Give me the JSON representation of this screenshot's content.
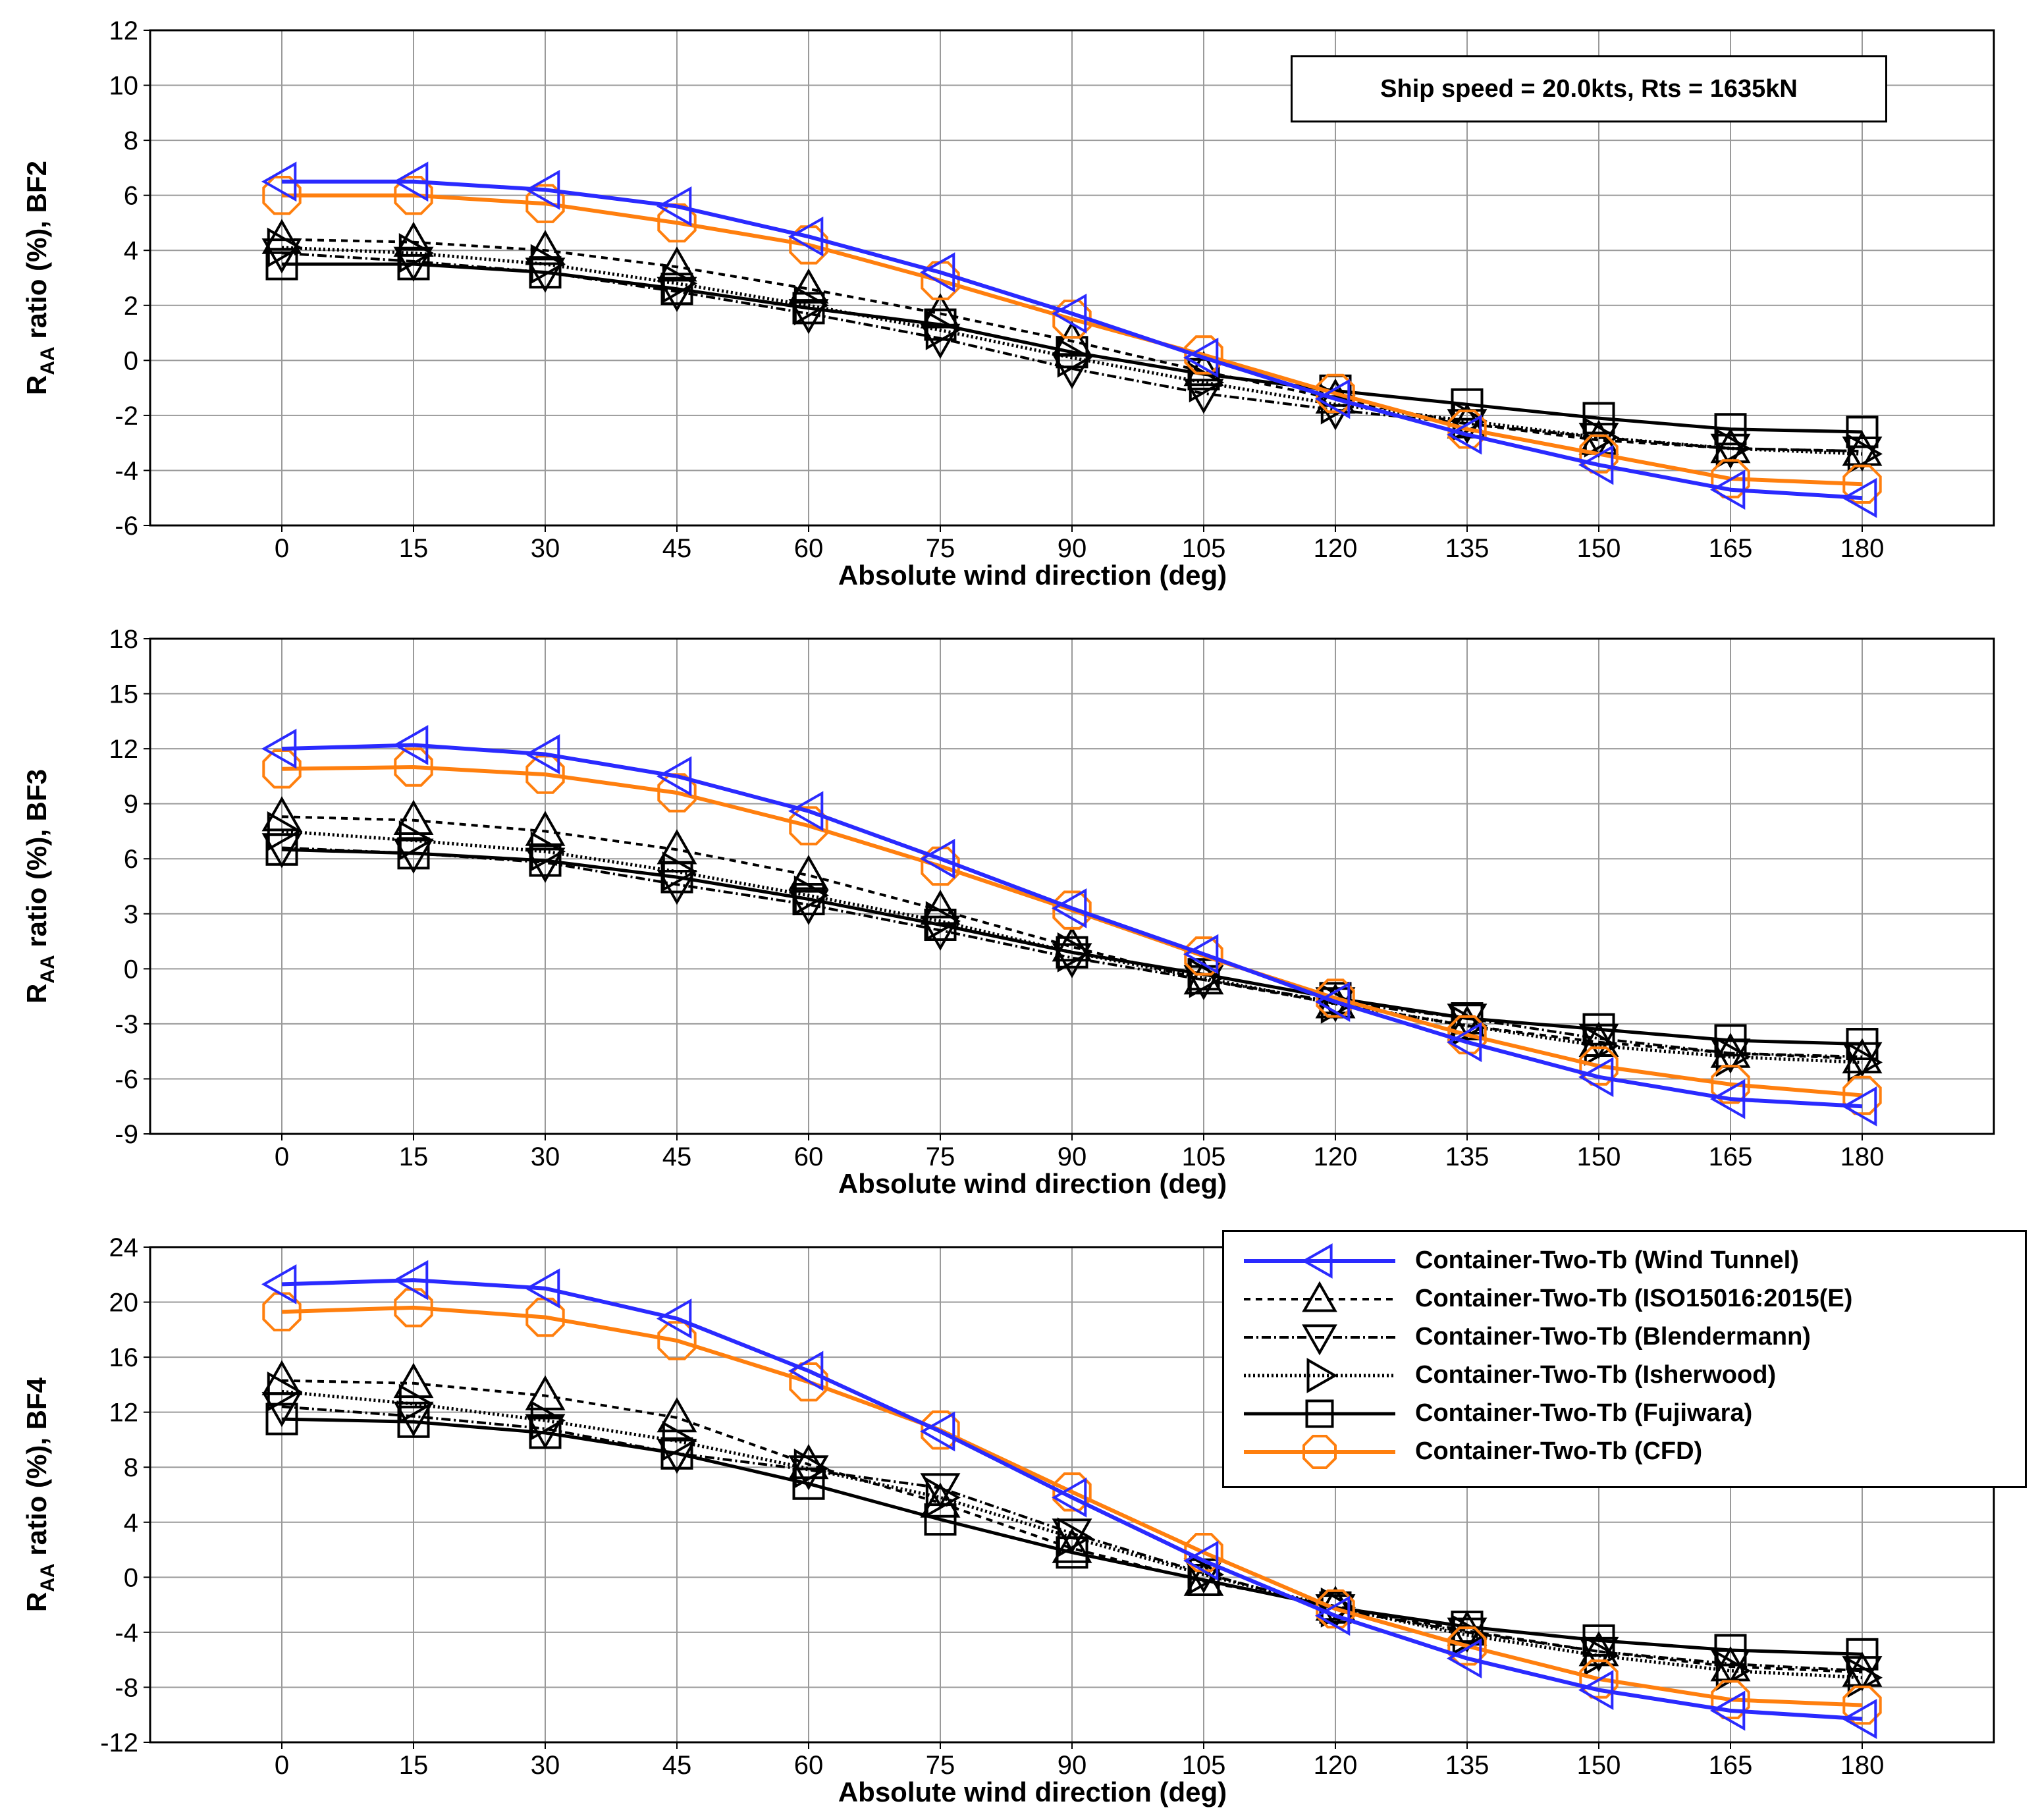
{
  "info_box": "Ship speed = 20.0kts, Rts = 1635kN",
  "legend": [
    {
      "label": "Container-Two-Tb (Wind Tunnel)",
      "series": "wt"
    },
    {
      "label": "Container-Two-Tb (ISO15016:2015(E)",
      "series": "iso"
    },
    {
      "label": "Container-Two-Tb (Blendermann)",
      "series": "blend"
    },
    {
      "label": "Container-Two-Tb (Isherwood)",
      "series": "isher"
    },
    {
      "label": "Container-Two-Tb (Fujiwara)",
      "series": "fuji"
    },
    {
      "label": "Container-Two-Tb (CFD)",
      "series": "cfd"
    }
  ],
  "series_style": {
    "wt": {
      "color": "#2a2aff",
      "dash": "",
      "marker": "tri-left",
      "width": 6
    },
    "iso": {
      "color": "#000000",
      "dash": "10,8",
      "marker": "tri-up",
      "width": 4
    },
    "blend": {
      "color": "#000000",
      "dash": "14,5,3,5",
      "marker": "tri-down",
      "width": 4
    },
    "isher": {
      "color": "#000000",
      "dash": "3,4",
      "marker": "tri-right",
      "width": 5
    },
    "fuji": {
      "color": "#000000",
      "dash": "",
      "marker": "square",
      "width": 5
    },
    "cfd": {
      "color": "#ff7f0e",
      "dash": "",
      "marker": "octagon",
      "width": 6
    }
  },
  "chart_data": [
    {
      "type": "line",
      "xlabel": "Absolute wind direction (deg)",
      "ylabel_main": "R",
      "ylabel_sub": "AA",
      "ylabel_rest": " ratio (%), BF2",
      "x": [
        0,
        15,
        30,
        45,
        60,
        75,
        90,
        105,
        120,
        135,
        150,
        165,
        180
      ],
      "xlim": [
        -15,
        195
      ],
      "ylim": [
        -6,
        12
      ],
      "yticks": [
        -6,
        -4,
        -2,
        0,
        2,
        4,
        6,
        8,
        10,
        12
      ],
      "grid": true,
      "series": [
        {
          "key": "wt",
          "values": [
            6.5,
            6.5,
            6.2,
            5.6,
            4.5,
            3.2,
            1.7,
            0.1,
            -1.4,
            -2.7,
            -3.8,
            -4.7,
            -5.0
          ]
        },
        {
          "key": "iso",
          "values": [
            4.4,
            4.3,
            4.0,
            3.4,
            2.6,
            1.7,
            0.7,
            -0.4,
            -1.4,
            -2.3,
            -2.9,
            -3.2,
            -3.3
          ]
        },
        {
          "key": "blend",
          "values": [
            3.9,
            3.6,
            3.2,
            2.5,
            1.7,
            0.8,
            -0.3,
            -1.2,
            -1.8,
            -2.3,
            -2.8,
            -3.2,
            -3.3
          ]
        },
        {
          "key": "isher",
          "values": [
            4.1,
            3.9,
            3.5,
            2.8,
            2.0,
            1.1,
            0.1,
            -0.8,
            -1.6,
            -2.2,
            -2.8,
            -3.2,
            -3.4
          ]
        },
        {
          "key": "fuji",
          "values": [
            3.5,
            3.5,
            3.2,
            2.6,
            1.9,
            1.3,
            0.3,
            -0.5,
            -1.1,
            -1.6,
            -2.1,
            -2.5,
            -2.6
          ]
        },
        {
          "key": "cfd",
          "values": [
            6.0,
            6.0,
            5.7,
            5.0,
            4.2,
            2.9,
            1.5,
            0.2,
            -1.2,
            -2.5,
            -3.4,
            -4.3,
            -4.5
          ]
        }
      ]
    },
    {
      "type": "line",
      "xlabel": "Absolute wind direction (deg)",
      "ylabel_main": "R",
      "ylabel_sub": "AA",
      "ylabel_rest": " ratio (%), BF3",
      "x": [
        0,
        15,
        30,
        45,
        60,
        75,
        90,
        105,
        120,
        135,
        150,
        165,
        180
      ],
      "xlim": [
        -15,
        195
      ],
      "ylim": [
        -9,
        18
      ],
      "yticks": [
        -9,
        -6,
        -3,
        0,
        3,
        6,
        9,
        12,
        15,
        18
      ],
      "grid": true,
      "series": [
        {
          "key": "wt",
          "values": [
            12.0,
            12.2,
            11.7,
            10.5,
            8.6,
            6.0,
            3.3,
            0.8,
            -1.8,
            -4.0,
            -5.9,
            -7.1,
            -7.5
          ]
        },
        {
          "key": "iso",
          "values": [
            8.3,
            8.1,
            7.5,
            6.5,
            5.1,
            3.2,
            1.2,
            -0.6,
            -1.9,
            -3.1,
            -4.0,
            -4.6,
            -4.9
          ]
        },
        {
          "key": "blend",
          "values": [
            6.6,
            6.3,
            5.8,
            4.6,
            3.5,
            2.1,
            0.6,
            -0.6,
            -1.8,
            -2.7,
            -3.8,
            -4.6,
            -4.8
          ]
        },
        {
          "key": "isher",
          "values": [
            7.5,
            7.0,
            6.4,
            5.3,
            4.0,
            2.6,
            0.9,
            -0.5,
            -1.9,
            -3.1,
            -4.2,
            -4.8,
            -5.1
          ]
        },
        {
          "key": "fuji",
          "values": [
            6.5,
            6.3,
            5.9,
            5.0,
            3.8,
            2.4,
            0.9,
            -0.3,
            -1.6,
            -2.7,
            -3.3,
            -3.9,
            -4.1
          ]
        },
        {
          "key": "cfd",
          "values": [
            10.9,
            11.0,
            10.6,
            9.6,
            7.8,
            5.6,
            3.2,
            0.7,
            -1.6,
            -3.6,
            -5.3,
            -6.3,
            -6.9
          ]
        }
      ]
    },
    {
      "type": "line",
      "xlabel": "Absolute wind direction (deg)",
      "ylabel_main": "R",
      "ylabel_sub": "AA",
      "ylabel_rest": " ratio (%), BF4",
      "x": [
        0,
        15,
        30,
        45,
        60,
        75,
        90,
        105,
        120,
        135,
        150,
        165,
        180
      ],
      "xlim": [
        -15,
        195
      ],
      "ylim": [
        -12,
        24
      ],
      "yticks": [
        -12,
        -8,
        -4,
        0,
        4,
        8,
        12,
        16,
        20,
        24
      ],
      "grid": true,
      "series": [
        {
          "key": "wt",
          "values": [
            21.3,
            21.6,
            21.0,
            18.8,
            15.0,
            10.6,
            5.8,
            1.2,
            -2.8,
            -5.9,
            -8.2,
            -9.7,
            -10.3
          ]
        },
        {
          "key": "iso",
          "values": [
            14.3,
            14.1,
            13.2,
            11.6,
            8.2,
            5.4,
            2.1,
            -0.3,
            -2.1,
            -3.9,
            -5.4,
            -6.5,
            -6.9
          ]
        },
        {
          "key": "blend",
          "values": [
            12.4,
            11.7,
            10.8,
            9.0,
            7.8,
            6.5,
            3.2,
            0.3,
            -2.3,
            -4.0,
            -5.4,
            -6.3,
            -6.8
          ]
        },
        {
          "key": "isher",
          "values": [
            13.5,
            12.6,
            11.4,
            9.9,
            7.9,
            5.8,
            2.9,
            0.2,
            -2.2,
            -4.2,
            -5.7,
            -6.8,
            -7.3
          ]
        },
        {
          "key": "fuji",
          "values": [
            11.5,
            11.3,
            10.5,
            9.0,
            6.8,
            4.2,
            1.8,
            -0.2,
            -2.2,
            -3.6,
            -4.6,
            -5.3,
            -5.6
          ]
        },
        {
          "key": "cfd",
          "values": [
            19.3,
            19.6,
            18.9,
            17.2,
            14.2,
            10.7,
            6.2,
            1.8,
            -2.3,
            -5.0,
            -7.4,
            -8.9,
            -9.3
          ]
        }
      ]
    }
  ]
}
